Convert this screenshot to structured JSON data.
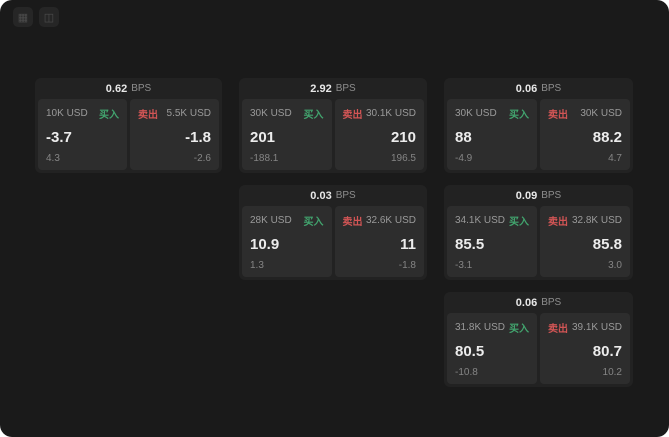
{
  "toolbar": {
    "icons": [
      {
        "name": "grid-icon",
        "glyph": "▦"
      },
      {
        "name": "chart-icon",
        "glyph": "◫"
      }
    ]
  },
  "colors": {
    "background": "#1a1a1a",
    "card": "#222222",
    "panel": "#2d2d2d",
    "buy_accent": "#42a46e",
    "sell_accent": "#d25555"
  },
  "cards": [
    {
      "bps_value": "0.62",
      "bps_label": "BPS",
      "buy": {
        "size": "10K USD",
        "action": "买入",
        "price": "-3.7",
        "secondary": "4.3"
      },
      "sell": {
        "size": "5.5K USD",
        "action": "卖出",
        "price": "-1.8",
        "secondary": "-2.6"
      }
    },
    {
      "bps_value": "2.92",
      "bps_label": "BPS",
      "buy": {
        "size": "30K USD",
        "action": "买入",
        "price": "201",
        "secondary": "-188.1"
      },
      "sell": {
        "size": "30.1K USD",
        "action": "卖出",
        "price": "210",
        "secondary": "196.5"
      }
    },
    {
      "bps_value": "0.06",
      "bps_label": "BPS",
      "buy": {
        "size": "30K USD",
        "action": "买入",
        "price": "88",
        "secondary": "-4.9"
      },
      "sell": {
        "size": "30K USD",
        "action": "卖出",
        "price": "88.2",
        "secondary": "4.7"
      }
    },
    {
      "bps_value": "0.03",
      "bps_label": "BPS",
      "buy": {
        "size": "28K USD",
        "action": "买入",
        "price": "10.9",
        "secondary": "1.3"
      },
      "sell": {
        "size": "32.6K USD",
        "action": "卖出",
        "price": "11",
        "secondary": "-1.8"
      }
    },
    {
      "bps_value": "0.09",
      "bps_label": "BPS",
      "buy": {
        "size": "34.1K USD",
        "action": "买入",
        "price": "85.5",
        "secondary": "-3.1"
      },
      "sell": {
        "size": "32.8K USD",
        "action": "卖出",
        "price": "85.8",
        "secondary": "3.0"
      }
    },
    {
      "bps_value": "0.06",
      "bps_label": "BPS",
      "buy": {
        "size": "31.8K USD",
        "action": "买入",
        "price": "80.5",
        "secondary": "-10.8"
      },
      "sell": {
        "size": "39.1K USD",
        "action": "卖出",
        "price": "80.7",
        "secondary": "10.2"
      }
    }
  ]
}
